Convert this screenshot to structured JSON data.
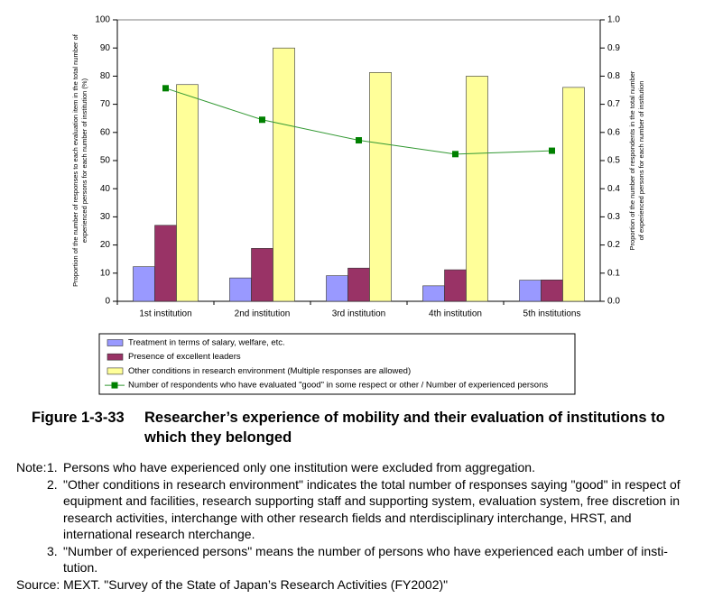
{
  "chart_data": {
    "type": "bar",
    "figure_number": "Figure 1-3-33",
    "title": "Researcher’s experience of mobility and their evaluation of institutions to which they belonged",
    "ylabel": [
      "Proportion of the number of responses to each evaluation item in the total number of",
      "experienced persons for each number of institution (%)"
    ],
    "y2label": [
      "Proportion of the number of respondents in the total number",
      "of experienced persons for each number of institution"
    ],
    "categories": [
      "1st institution",
      "2nd institution",
      "3rd institution",
      "4th institution",
      "5th institutions"
    ],
    "series": [
      {
        "name": "Treatment in terms of salary, welfare, etc.",
        "color": "#9999ff",
        "values": [
          12.3,
          8.3,
          9.1,
          5.5,
          7.5
        ]
      },
      {
        "name": "Presence of excellent leaders",
        "color": "#993366",
        "values": [
          27,
          18.8,
          11.8,
          11.2,
          7.6
        ]
      },
      {
        "name": "Other conditions in research environment (Multiple responses are allowed)",
        "color": "#ffff99",
        "values": [
          77,
          90,
          81.3,
          80,
          76
        ]
      },
      {
        "name": "Number of respondents who have evaluated \"good\" in some respect or other / Number of experienced persons",
        "color": "#339933",
        "type": "line",
        "axis": "y2",
        "values": [
          0.757,
          0.645,
          0.572,
          0.523,
          0.535
        ]
      }
    ],
    "ylim": [
      0,
      100
    ],
    "yticks": [
      0,
      10,
      20,
      30,
      40,
      50,
      60,
      70,
      80,
      90,
      100
    ],
    "y2lim": [
      0,
      1
    ],
    "y2ticks": [
      {
        "value": 0,
        "label": "0.0"
      },
      0.1,
      0.2,
      0.3,
      0.4,
      0.5,
      0.6,
      0.7,
      0.8,
      0.9,
      {
        "value": 1,
        "label": "1.0"
      }
    ],
    "legend": "bottom"
  },
  "note_label": "Note:",
  "notes": [
    {
      "number": "1.",
      "text": "Persons who have experienced only one institution were excluded from aggregation."
    },
    {
      "number": "2.",
      "text": "\"Other conditions in research environment\" indicates the total number of responses saying \"good\" in respect of equipment and facilities, research supporting staff and supporting system, evaluation system, free discretion in research activities, interchange with other research fields and nterdisciplinary interchange, HRST, and international research nterchange."
    },
    {
      "number": "3.",
      "text": "\"Number of experienced persons\" means the number of persons who have experienced each umber of insti-tution."
    }
  ],
  "source": "Source: MEXT. \"Survey of the State of Japan’s Research Activities (FY2002)\""
}
